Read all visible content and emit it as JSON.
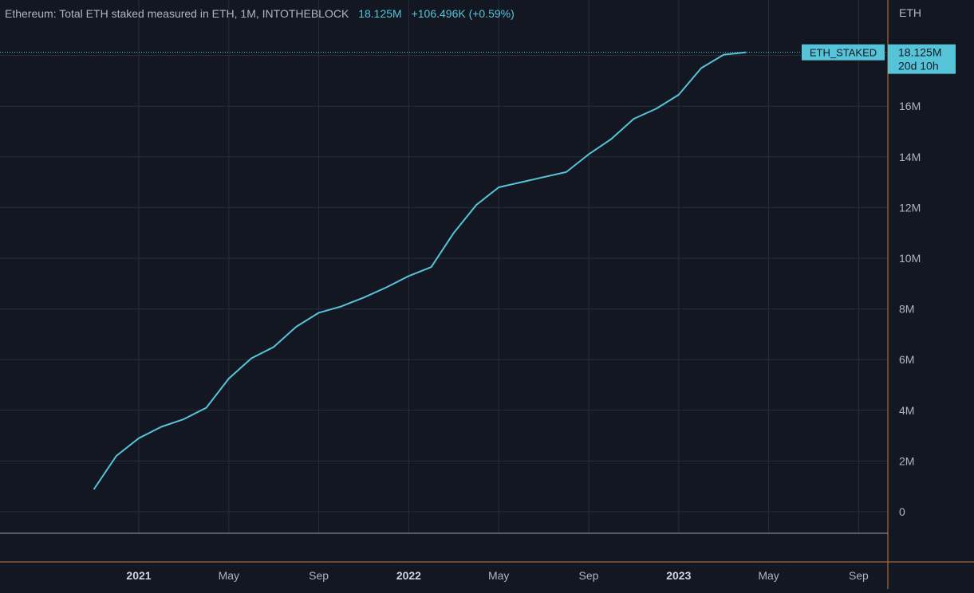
{
  "legend": {
    "title": "Ethereum: Total ETH staked measured in ETH, 1M, INTOTHEBLOCK",
    "last_value": "18.125M",
    "change": "+106.496K (+0.59%)"
  },
  "axis": {
    "unit": "ETH",
    "y_tick_labels": [
      "0",
      "2M",
      "4M",
      "6M",
      "8M",
      "10M",
      "12M",
      "14M",
      "16M"
    ],
    "x_tick_labels": [
      "2021",
      "May",
      "Sep",
      "2022",
      "May",
      "Sep",
      "2023",
      "May",
      "Sep"
    ],
    "x_tick_bold": [
      true,
      false,
      false,
      true,
      false,
      false,
      true,
      false,
      false
    ]
  },
  "series_label": "ETH_STAKED",
  "price_label": {
    "value": "18.125M",
    "countdown": "20d 10h"
  },
  "colors": {
    "background": "#131722",
    "line": "#56c4d8",
    "grid": "#2a2e39",
    "axis_border": "#c77a3a",
    "text": "#b2b5be",
    "label_bg": "#56c4d8",
    "label_text": "#131722"
  },
  "chart_data": {
    "type": "line",
    "title": "Ethereum: Total ETH staked measured in ETH, 1M, INTOTHEBLOCK",
    "ylabel": "ETH",
    "y_scale": "linear",
    "ylim": [
      0,
      18125000
    ],
    "x_ticks": [
      "2021-01",
      "2021-05",
      "2021-09",
      "2022-01",
      "2022-05",
      "2022-09",
      "2023-01",
      "2023-05",
      "2023-09"
    ],
    "series": [
      {
        "name": "ETH_STAKED",
        "x": [
          "2020-11",
          "2020-12",
          "2021-01",
          "2021-02",
          "2021-03",
          "2021-04",
          "2021-05",
          "2021-06",
          "2021-07",
          "2021-08",
          "2021-09",
          "2021-10",
          "2021-11",
          "2021-12",
          "2022-01",
          "2022-02",
          "2022-03",
          "2022-04",
          "2022-05",
          "2022-06",
          "2022-07",
          "2022-08",
          "2022-09",
          "2022-10",
          "2022-11",
          "2022-12",
          "2023-01",
          "2023-02",
          "2023-03",
          "2023-04"
        ],
        "values": [
          880000,
          2200000,
          2900000,
          3350000,
          3650000,
          4100000,
          5250000,
          6050000,
          6500000,
          7300000,
          7850000,
          8100000,
          8450000,
          8850000,
          9300000,
          9650000,
          11000000,
          12100000,
          12800000,
          13000000,
          13200000,
          13400000,
          14100000,
          14700000,
          15500000,
          15900000,
          16450000,
          17500000,
          18030000,
          18125000
        ]
      }
    ]
  }
}
